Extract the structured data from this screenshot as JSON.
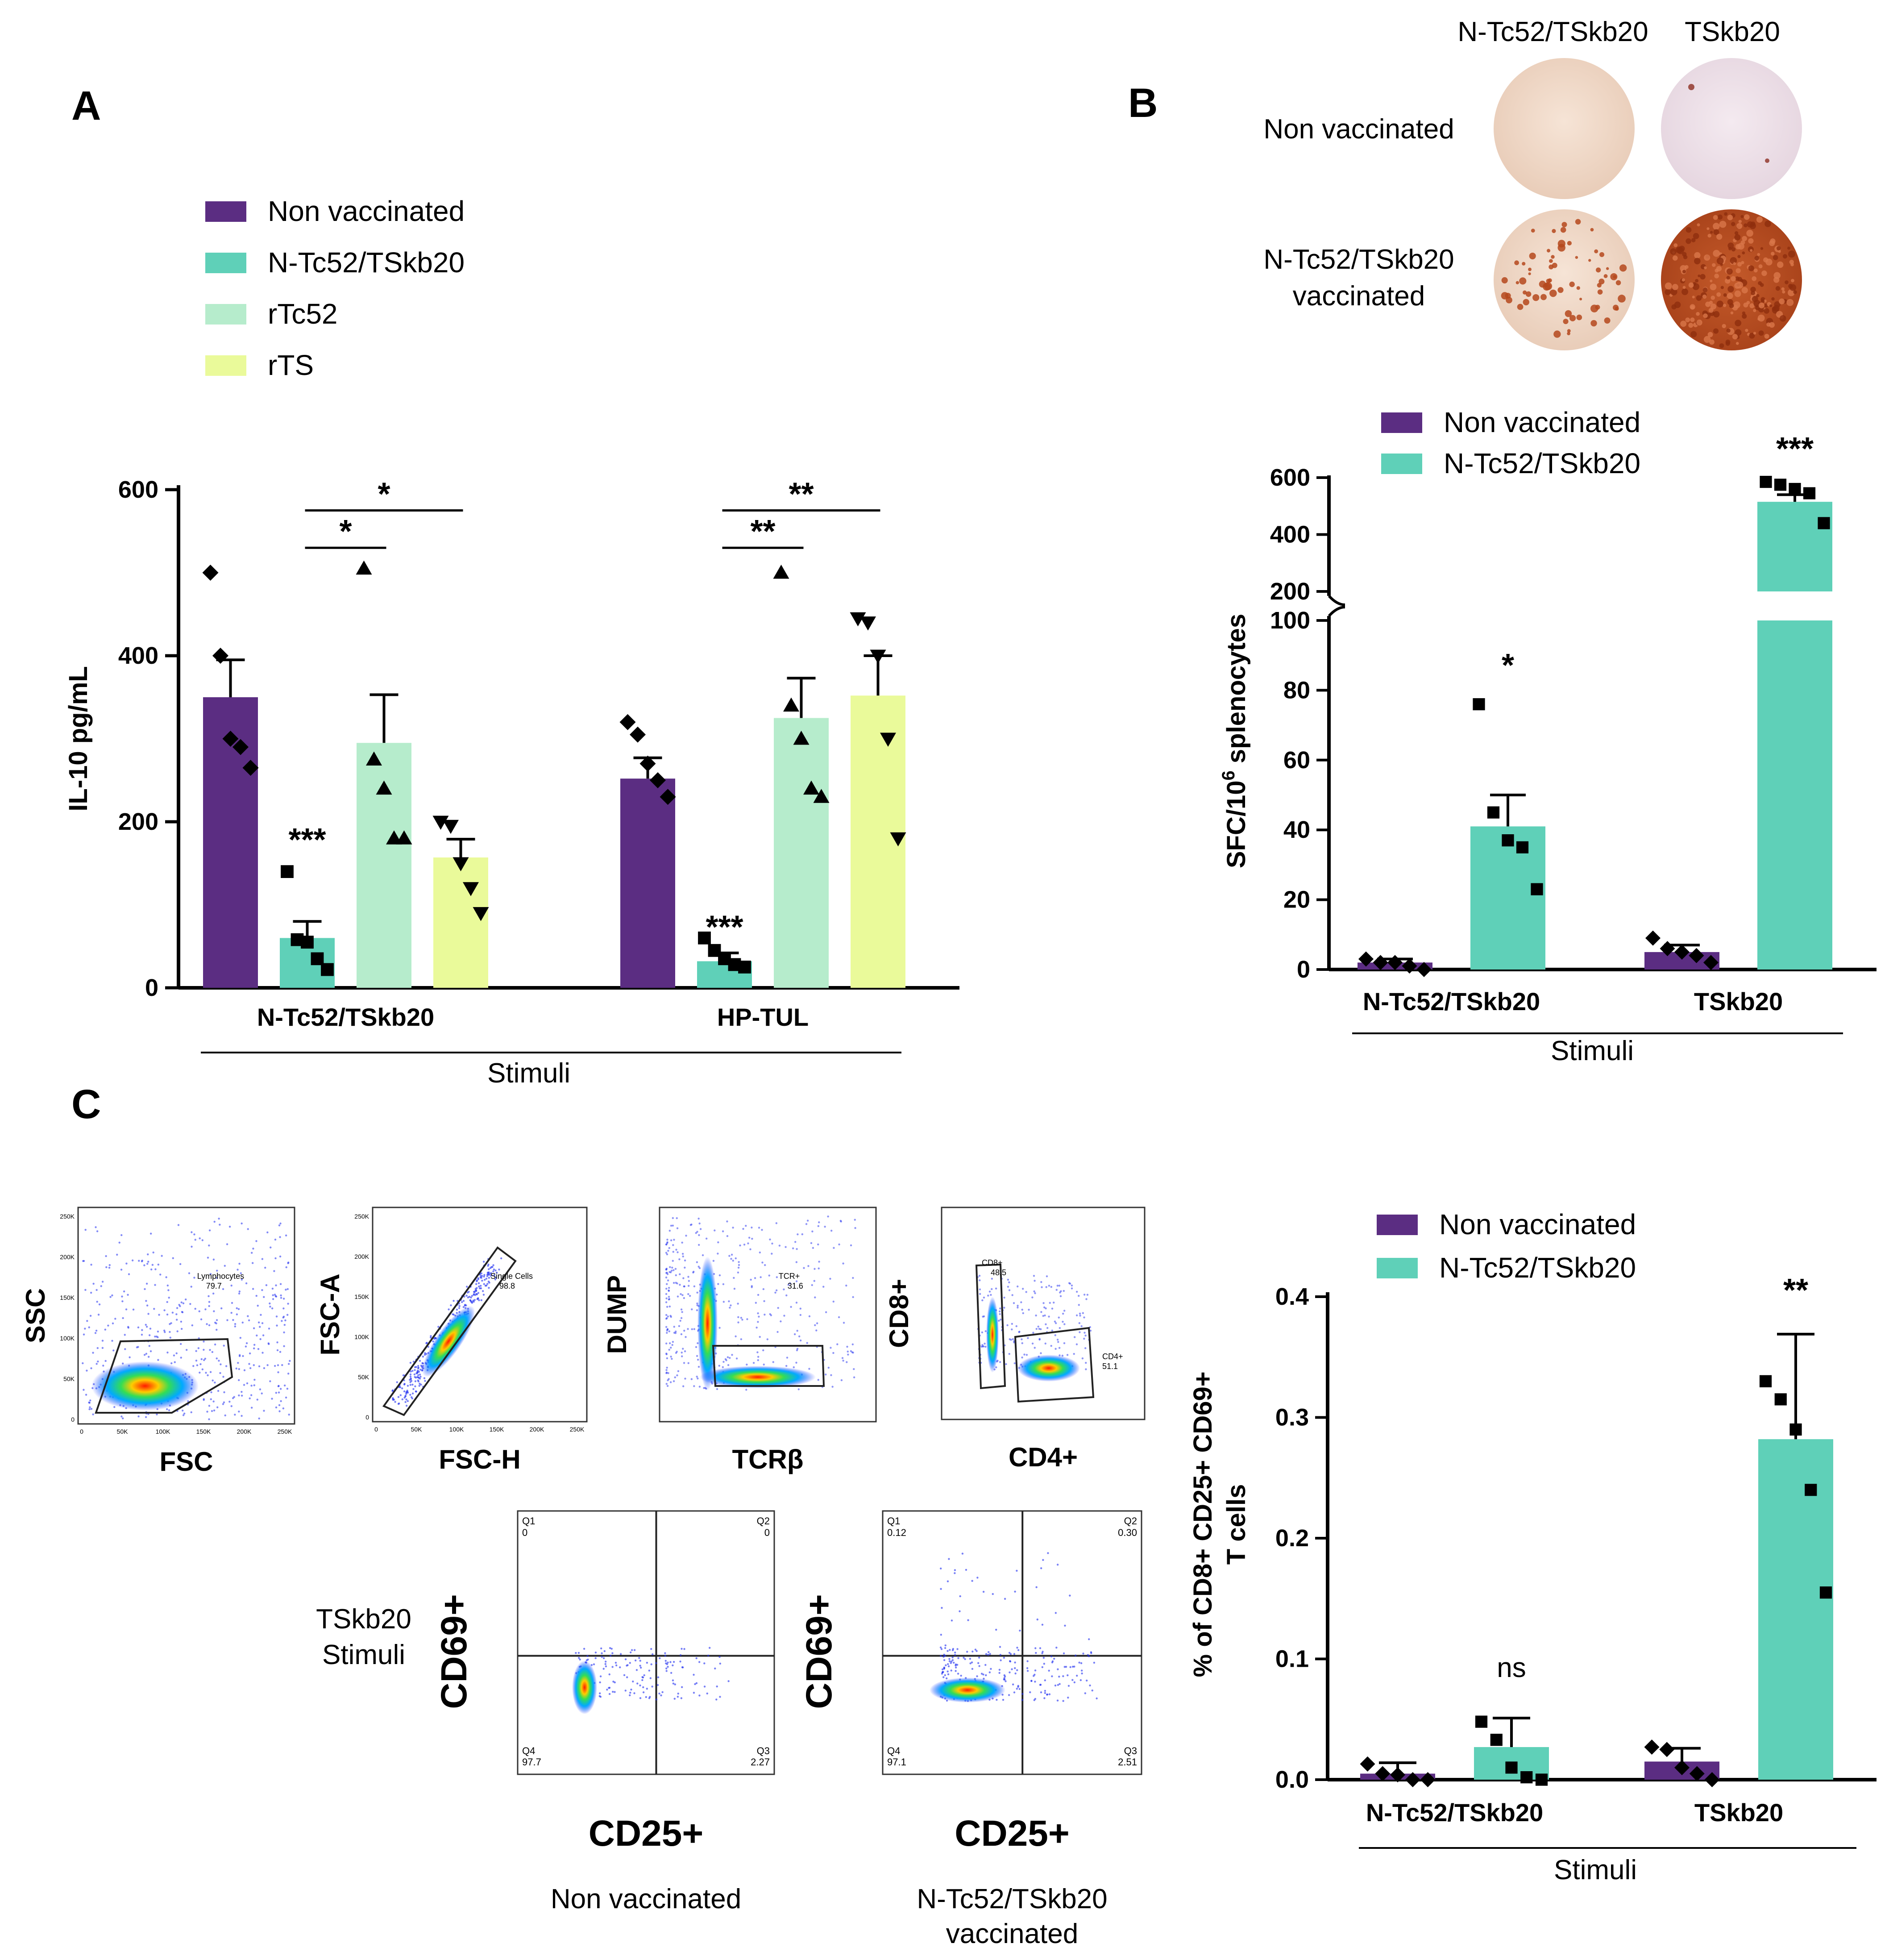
{
  "colors": {
    "non_vaccinated": "#5b2d82",
    "ntc52_tskb20": "#5fd0b8",
    "rtc52": "#b6eccc",
    "rts": "#eafa9a",
    "well_light": "#f0d8c8",
    "well_light2": "#ecdfe8",
    "well_spots": "#b5481c"
  },
  "panel_a": {
    "letter": "A",
    "legend": [
      "Non vaccinated",
      "N-Tc52/TSkb20",
      "rTc52",
      "rTS"
    ],
    "stimuli_label": "Stimuli",
    "significance": [
      {
        "text": "*",
        "group": "N-Tc52/TSkb20",
        "series_from": 1,
        "series_to": 2
      },
      {
        "text": "*",
        "group": "N-Tc52/TSkb20",
        "series_from": 1,
        "series_to": 3
      },
      {
        "text": "**",
        "group": "HP-TUL",
        "series_from": 1,
        "series_to": 2
      },
      {
        "text": "**",
        "group": "HP-TUL",
        "series_from": 1,
        "series_to": 3
      }
    ]
  },
  "panel_b": {
    "letter": "B",
    "well_column_headers": [
      "N-Tc52/TSkb20",
      "TSkb20"
    ],
    "well_row_labels": [
      "Non vaccinated",
      "N-Tc52/TSkb20",
      "vaccinated"
    ],
    "legend": [
      "Non vaccinated",
      "N-Tc52/TSkb20"
    ],
    "stimuli_label": "Stimuli",
    "ylabel_main": "SFC/10",
    "ylabel_sup": "6",
    "ylabel_tail": " splenocytes"
  },
  "panel_c": {
    "letter": "C",
    "legend": [
      "Non vaccinated",
      "N-Tc52/TSkb20"
    ],
    "stimuli_label": "Stimuli",
    "ylabel_line1": "% of CD8+ CD25+ CD69+",
    "ylabel_line2": "T cells",
    "flow_plots": [
      {
        "xlabel": "FSC",
        "ylabel": "SSC",
        "gate_name": "Lymphocytes",
        "gate_value": "79.7"
      },
      {
        "xlabel": "FSC-H",
        "ylabel": "FSC-A",
        "gate_name": "Single Cells",
        "gate_value": "98.8"
      },
      {
        "xlabel": "TCRβ",
        "ylabel": "DUMP",
        "gate_name": "TCR+",
        "gate_value": "31.6"
      },
      {
        "xlabel": "CD4+",
        "ylabel": "CD8+",
        "gate_name": "CD8+",
        "gate_value": "48.5",
        "gate2_name": "CD4+",
        "gate2_value": "51.1"
      }
    ],
    "quadrant_plots": [
      {
        "caption": "Non vaccinated",
        "xlabel": "CD25+",
        "ylabel": "CD69+",
        "q1": "0",
        "q2": "0",
        "q3": "2.27",
        "q4": "97.7"
      },
      {
        "caption_line1": "N-Tc52/TSkb20",
        "caption_line2": "vaccinated",
        "xlabel": "CD25+",
        "ylabel": "CD69+",
        "q1": "0.12",
        "q2": "0.30",
        "q3": "2.51",
        "q4": "97.1"
      }
    ],
    "quadrant_labels": [
      "Q1",
      "Q2",
      "Q3",
      "Q4"
    ],
    "row_label_line1": "TSkb20",
    "row_label_line2": "Stimuli",
    "scatter_ticks": [
      "250K",
      "200K",
      "150K",
      "100K",
      "50K",
      "0"
    ]
  },
  "chart_data": [
    {
      "id": "A",
      "type": "bar",
      "ylabel": "IL-10 pg/mL",
      "xlabel": "Stimuli",
      "ylim": [
        0,
        600
      ],
      "yticks": [
        0,
        200,
        400,
        600
      ],
      "categories": [
        "N-Tc52/TSkb20",
        "HP-TUL"
      ],
      "series": [
        {
          "name": "Non vaccinated",
          "values": [
            350,
            252
          ],
          "sem": [
            45,
            25
          ],
          "points": [
            [
              500,
              400,
              300,
              290,
              265
            ],
            [
              320,
              305,
              270,
              250,
              230
            ]
          ],
          "marker": "diamond"
        },
        {
          "name": "N-Tc52/TSkb20",
          "values": [
            60,
            32
          ],
          "sem": [
            20,
            10
          ],
          "points": [
            [
              140,
              58,
              55,
              35,
              22
            ],
            [
              60,
              45,
              35,
              28,
              25
            ]
          ],
          "marker": "square"
        },
        {
          "name": "rTc52",
          "values": [
            295,
            325
          ],
          "sem": [
            58,
            48
          ],
          "points": [
            [
              505,
              275,
              240,
              180,
              180
            ],
            [
              500,
              340,
              300,
              240,
              230
            ]
          ],
          "marker": "triangle-up"
        },
        {
          "name": "rTS",
          "values": [
            157,
            352
          ],
          "sem": [
            22,
            48
          ],
          "points": [
            [
              200,
              195,
              150,
              120,
              90
            ],
            [
              445,
              440,
              400,
              300,
              180
            ]
          ],
          "marker": "triangle-down"
        }
      ],
      "annotations": [
        {
          "text": "***",
          "category": "N-Tc52/TSkb20",
          "series": "N-Tc52/TSkb20",
          "y": 165
        },
        {
          "text": "***",
          "category": "HP-TUL",
          "series": "N-Tc52/TSkb20",
          "y": 60
        }
      ]
    },
    {
      "id": "B",
      "type": "bar",
      "ylabel": "SFC/10^6 splenocytes",
      "xlabel": "Stimuli",
      "axis_break": [
        100,
        200
      ],
      "yticks_lower": [
        0,
        20,
        40,
        60,
        80,
        100
      ],
      "yticks_upper": [
        200,
        400,
        600
      ],
      "categories": [
        "N-Tc52/TSkb20",
        "TSkb20"
      ],
      "series": [
        {
          "name": "Non vaccinated",
          "values": [
            2,
            5
          ],
          "sem": [
            1,
            2
          ],
          "points": [
            [
              3,
              2,
              2,
              1,
              0
            ],
            [
              9,
              6,
              5,
              4,
              2
            ]
          ],
          "marker": "diamond"
        },
        {
          "name": "N-Tc52/TSkb20",
          "values": [
            41,
            515
          ],
          "sem": [
            9,
            25
          ],
          "points": [
            [
              76,
              45,
              37,
              35,
              23
            ],
            [
              585,
              575,
              560,
              545,
              440
            ]
          ],
          "marker": "square"
        }
      ],
      "annotations": [
        {
          "text": "*",
          "category": "N-Tc52/TSkb20",
          "series": "N-Tc52/TSkb20",
          "y": 84
        },
        {
          "text": "***",
          "category": "TSkb20",
          "series": "N-Tc52/TSkb20",
          "y": 700
        }
      ]
    },
    {
      "id": "C",
      "type": "bar",
      "ylabel": "% of CD8+ CD25+ CD69+ T cells",
      "xlabel": "Stimuli",
      "ylim": [
        0,
        0.4
      ],
      "yticks": [
        0.0,
        0.1,
        0.2,
        0.3,
        0.4
      ],
      "categories": [
        "N-Tc52/TSkb20",
        "TSkb20"
      ],
      "series": [
        {
          "name": "Non vaccinated",
          "values": [
            0.005,
            0.015
          ],
          "sd": [
            0.009,
            0.011
          ],
          "points": [
            [
              0.013,
              0.005,
              0.004,
              0.0,
              0.0
            ],
            [
              0.027,
              0.025,
              0.01,
              0.005,
              0.0
            ]
          ],
          "marker": "diamond"
        },
        {
          "name": "N-Tc52/TSkb20",
          "values": [
            0.027,
            0.282
          ],
          "sd": [
            0.024,
            0.087
          ],
          "points": [
            [
              0.048,
              0.033,
              0.01,
              0.002,
              0.0
            ],
            [
              0.33,
              0.315,
              0.29,
              0.24,
              0.155
            ]
          ],
          "marker": "square"
        }
      ],
      "annotations": [
        {
          "text": "ns",
          "category": "N-Tc52/TSkb20",
          "series": "N-Tc52/TSkb20",
          "y": 0.085
        },
        {
          "text": "**",
          "category": "TSkb20",
          "series": "N-Tc52/TSkb20",
          "y": 0.4
        }
      ]
    }
  ]
}
